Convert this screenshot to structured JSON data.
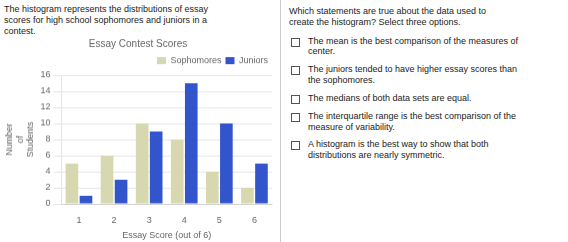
{
  "chart_data": {
    "type": "bar",
    "title": "Essay Contest Scores",
    "xlabel": "Essay Score (out of 6)",
    "ylabel": "Number\nof\nStudents",
    "categories": [
      "1",
      "2",
      "3",
      "4",
      "5",
      "6"
    ],
    "series": [
      {
        "name": "Sophomores",
        "color": "#d8d8b0",
        "values": [
          5,
          6,
          10,
          8,
          4,
          2
        ]
      },
      {
        "name": "Juniors",
        "color": "#3355cc",
        "values": [
          1,
          3,
          9,
          15,
          10,
          5
        ]
      }
    ],
    "ylim": [
      0,
      16
    ],
    "yticks": [
      0,
      2,
      4,
      6,
      8,
      10,
      12,
      14,
      16
    ],
    "grid": true,
    "legend": "upper right",
    "annotations": [
      "The histogram represents the distributions of essay\nscores for high school sophomores and juniors in a\ncontest.",
      "Which statements are true about the data used to\ncreate the histogram? Select three options.",
      "The mean is the best comparison of the measures of\ncenter.",
      "The juniors tended to have higher essay scores than\nthe sophomores.",
      "The medians of both data sets are equal.",
      "The interquartile range is the best comparison of the\nmeasure of variability.",
      "A histogram is the best way to show that both\ndistributions are nearly symmetric."
    ]
  }
}
